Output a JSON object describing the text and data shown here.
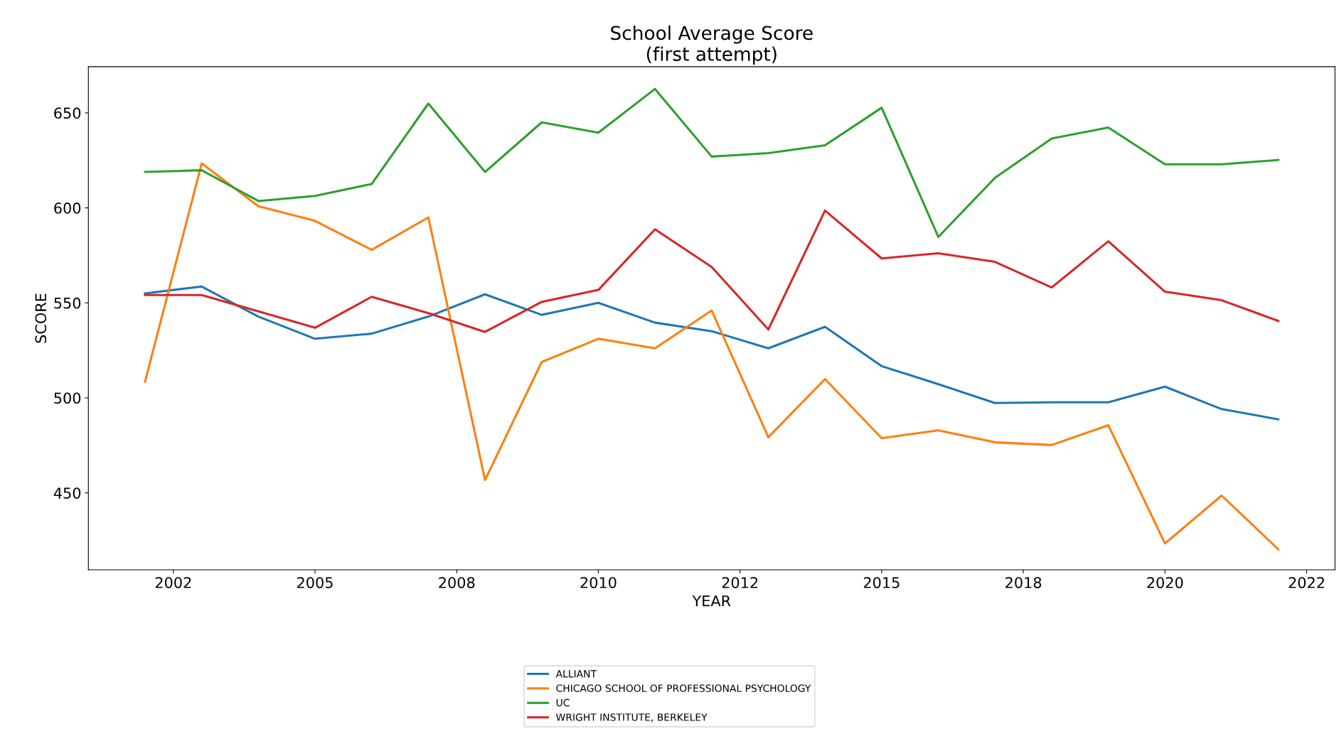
{
  "chart_data": {
    "type": "line",
    "title": "School Average Score\n(first attempt)",
    "xlabel": "YEAR",
    "ylabel": "SCORE",
    "x": [
      2002,
      2003,
      2004,
      2005,
      2006,
      2007,
      2008,
      2009,
      2010,
      2011,
      2012,
      2013,
      2014,
      2015,
      2016,
      2017,
      2018,
      2019,
      2020,
      2021,
      2022
    ],
    "series": [
      {
        "name": "ALLIANT",
        "color": "#1f77b4",
        "values": [
          555.0,
          558.6,
          542.8,
          531.1,
          533.8,
          542.8,
          554.5,
          543.7,
          550.0,
          539.6,
          535.1,
          526.1,
          537.4,
          516.7,
          507.2,
          497.3,
          497.7,
          497.7,
          505.9,
          494.1,
          488.7
        ]
      },
      {
        "name": "CHICAGO SCHOOL OF PROFESSIONAL PSYCHOLOGY",
        "color": "#ff7f0e",
        "values": [
          508.6,
          623.4,
          600.9,
          593.2,
          577.9,
          595.0,
          456.8,
          518.9,
          531.1,
          526.1,
          546.0,
          479.3,
          509.9,
          478.8,
          482.9,
          476.6,
          475.2,
          485.6,
          423.4,
          448.6,
          420.3
        ]
      },
      {
        "name": "UC",
        "color": "#2ca02c",
        "values": [
          618.9,
          619.8,
          603.6,
          606.3,
          612.6,
          654.9,
          618.9,
          645.0,
          639.6,
          662.6,
          627.0,
          628.8,
          632.9,
          652.7,
          584.7,
          615.8,
          636.5,
          642.3,
          622.9,
          622.9,
          625.2
        ]
      },
      {
        "name": "WRIGHT INSTITUTE, BERKELEY",
        "color": "#d62728",
        "values": [
          554.1,
          554.1,
          545.5,
          536.9,
          553.2,
          544.6,
          534.7,
          550.5,
          556.8,
          588.7,
          568.9,
          536.0,
          598.6,
          573.4,
          576.1,
          571.6,
          558.1,
          582.4,
          555.9,
          551.4,
          540.5
        ]
      }
    ],
    "xlim": [
      2001,
      2023
    ],
    "xticks": [
      {
        "value": 2002.5,
        "label": "2002"
      },
      2005,
      {
        "value": 2007.5,
        "label": "2008"
      },
      2010,
      {
        "value": 2012.5,
        "label": "2012"
      },
      2015,
      {
        "value": 2017.5,
        "label": "2018"
      },
      2020,
      {
        "value": 2022.5,
        "label": "2022"
      }
    ],
    "ylim": [
      409.5,
      674.3
    ],
    "yticks": [
      450,
      500,
      550,
      600,
      650
    ],
    "legend": "bottom",
    "grid": false
  }
}
